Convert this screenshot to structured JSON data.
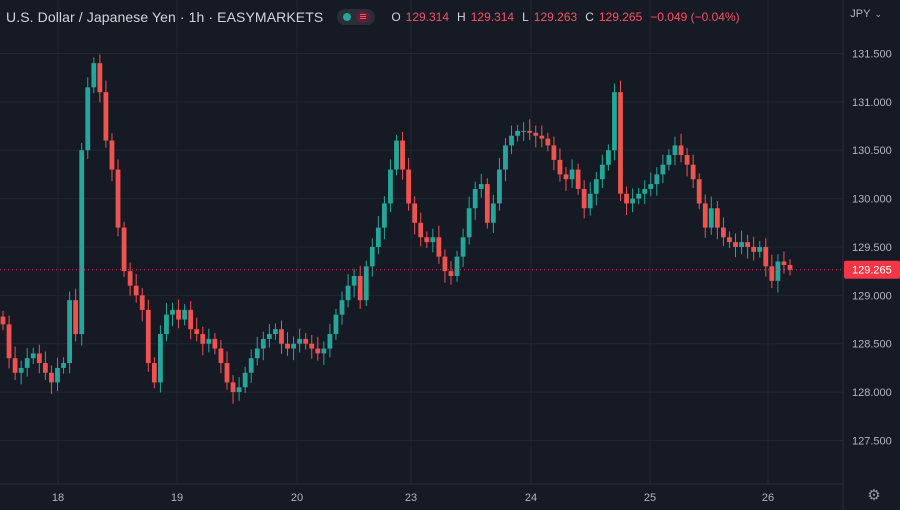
{
  "header": {
    "symbol_title": "U.S. Dollar / Japanese Yen · 1h · EASYMARKETS",
    "ohlc": [
      {
        "key": "O",
        "value": "129.314"
      },
      {
        "key": "H",
        "value": "129.314"
      },
      {
        "key": "L",
        "value": "129.263"
      },
      {
        "key": "C",
        "value": "129.265"
      }
    ],
    "change": "−0.049 (−0.04%)"
  },
  "currency_selector": "JPY",
  "colors": {
    "up": "#26a69a",
    "down": "#ef5350",
    "background": "#161a25",
    "last_price_tag": "#f23645"
  },
  "icons": {
    "settings": "gear-icon",
    "toggle": "eye-toggle-icon"
  },
  "chart_data": {
    "type": "candlestick",
    "timeframe": "1h",
    "y_tick_labels": [
      "131.500",
      "131.000",
      "130.500",
      "130.000",
      "129.500",
      "129.000",
      "128.500",
      "128.000",
      "127.500"
    ],
    "y_ticks": [
      131.5,
      131.0,
      130.5,
      130.0,
      129.5,
      129.0,
      128.5,
      128.0,
      127.5
    ],
    "ylim": [
      127.05,
      131.97
    ],
    "x_tick_labels": [
      "18",
      "19",
      "20",
      "23",
      "24",
      "25",
      "26"
    ],
    "last_price": 129.265,
    "last_price_label": "129.265",
    "grid": true,
    "candle_closes": [
      128.7,
      128.35,
      128.2,
      128.25,
      128.35,
      128.4,
      128.3,
      128.2,
      128.1,
      128.25,
      128.3,
      128.95,
      128.6,
      130.5,
      131.15,
      131.4,
      131.1,
      130.6,
      130.3,
      129.7,
      129.25,
      129.1,
      129.0,
      128.85,
      128.3,
      128.1,
      128.6,
      128.8,
      128.85,
      128.75,
      128.85,
      128.65,
      128.6,
      128.5,
      128.55,
      128.45,
      128.3,
      128.1,
      128.0,
      128.05,
      128.2,
      128.35,
      128.45,
      128.55,
      128.6,
      128.65,
      128.5,
      128.45,
      128.5,
      128.55,
      128.5,
      128.45,
      128.4,
      128.45,
      128.6,
      128.8,
      128.95,
      129.1,
      129.2,
      128.95,
      129.3,
      129.5,
      129.7,
      129.95,
      130.3,
      130.6,
      130.3,
      129.95,
      129.75,
      129.6,
      129.55,
      129.6,
      129.4,
      129.25,
      129.2,
      129.4,
      129.6,
      129.9,
      130.1,
      130.15,
      129.75,
      129.95,
      130.3,
      130.55,
      130.65,
      130.7,
      130.7,
      130.68,
      130.65,
      130.62,
      130.55,
      130.4,
      130.25,
      130.2,
      130.3,
      130.1,
      129.9,
      130.05,
      130.2,
      130.35,
      130.5,
      131.1,
      130.05,
      129.95,
      130.0,
      130.05,
      130.1,
      130.15,
      130.25,
      130.35,
      130.45,
      130.55,
      130.45,
      130.35,
      130.2,
      129.95,
      129.7,
      129.9,
      129.7,
      129.6,
      129.55,
      129.5,
      129.55,
      129.5,
      129.45,
      129.5,
      129.3,
      129.15,
      129.35,
      129.314,
      129.265
    ]
  }
}
